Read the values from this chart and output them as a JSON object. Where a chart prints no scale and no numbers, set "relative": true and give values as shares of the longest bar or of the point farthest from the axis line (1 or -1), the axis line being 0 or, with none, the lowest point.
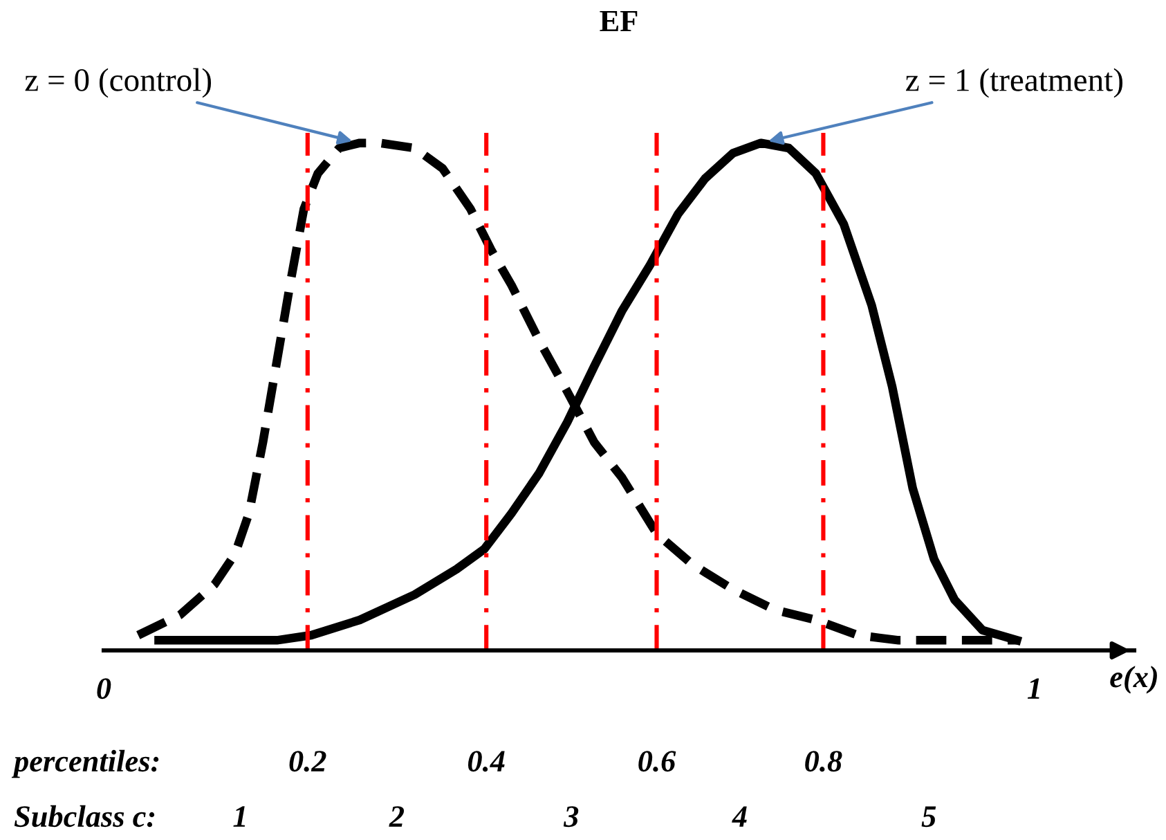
{
  "chart_data": {
    "type": "line",
    "title": "EF",
    "xlabel": "e(x)",
    "relative": true,
    "xlim": [
      0,
      1.107
    ],
    "xticks": [
      0,
      1
    ],
    "grid": false,
    "marker": "none",
    "series": [
      {
        "name": "z = 0 (control)",
        "color": "#000000",
        "line_style": "dashed",
        "x": [
          0.037,
          0.082,
          0.119,
          0.141,
          0.156,
          0.171,
          0.186,
          0.201,
          0.215,
          0.23,
          0.253,
          0.275,
          0.297,
          0.334,
          0.364,
          0.394,
          0.416,
          0.438,
          0.468,
          0.498,
          0.527,
          0.557,
          0.594,
          0.632,
          0.676,
          0.721,
          0.765,
          0.81,
          0.854,
          0.929,
          0.981
        ],
        "values": [
          0.03,
          0.07,
          0.13,
          0.19,
          0.27,
          0.41,
          0.57,
          0.73,
          0.87,
          0.94,
          0.99,
          1,
          1,
          0.99,
          0.95,
          0.87,
          0.79,
          0.72,
          0.61,
          0.51,
          0.41,
          0.34,
          0.23,
          0.17,
          0.12,
          0.08,
          0.06,
          0.03,
          0.02,
          0.02,
          0.02
        ]
      },
      {
        "name": "z = 1 (treatment)",
        "color": "#000000",
        "line_style": "solid",
        "x": [
          0.059,
          0.186,
          0.223,
          0.275,
          0.334,
          0.379,
          0.409,
          0.438,
          0.468,
          0.498,
          0.527,
          0.557,
          0.587,
          0.617,
          0.646,
          0.676,
          0.706,
          0.736,
          0.765,
          0.795,
          0.825,
          0.847,
          0.869,
          0.892,
          0.914,
          0.944,
          0.981
        ],
        "values": [
          0.02,
          0.02,
          0.03,
          0.06,
          0.11,
          0.16,
          0.2,
          0.27,
          0.35,
          0.45,
          0.56,
          0.67,
          0.76,
          0.86,
          0.93,
          0.98,
          1,
          0.99,
          0.94,
          0.84,
          0.68,
          0.52,
          0.32,
          0.18,
          0.1,
          0.04,
          0.02
        ]
      }
    ],
    "ref_lines": [
      {
        "axis": "x",
        "value": 0.219,
        "color": "#ff0000",
        "line_style": "dashdot"
      },
      {
        "axis": "x",
        "value": 0.411,
        "color": "#ff0000",
        "line_style": "dashdot"
      },
      {
        "axis": "x",
        "value": 0.594,
        "color": "#ff0000",
        "line_style": "dashdot"
      },
      {
        "axis": "x",
        "value": 0.773,
        "color": "#ff0000",
        "line_style": "dashdot"
      }
    ],
    "annotations": [
      "percentiles:",
      "0.2",
      "0.4",
      "0.6",
      "0.8",
      "Subclass c:",
      "1",
      "2",
      "3",
      "4",
      "5"
    ]
  }
}
